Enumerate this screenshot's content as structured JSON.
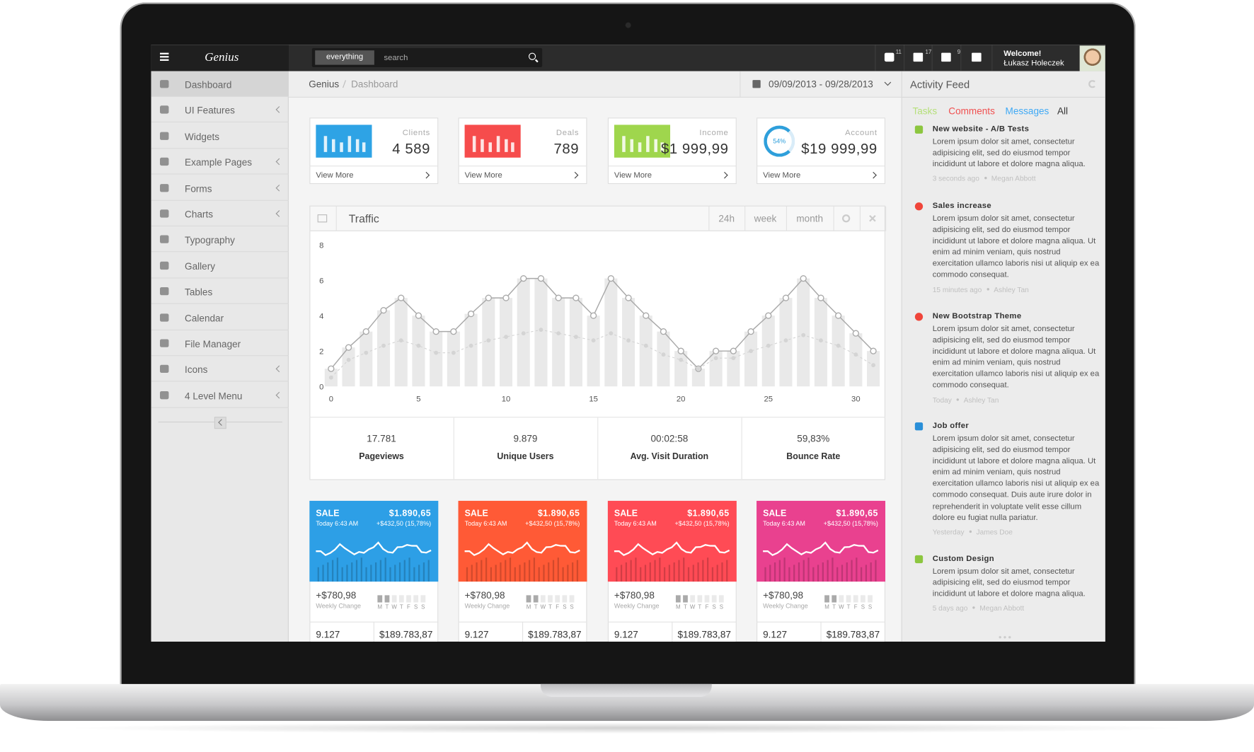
{
  "brand": "Genius",
  "search": {
    "scope": "everything",
    "placeholder": "search"
  },
  "header_badges": [
    "11",
    "17",
    "9"
  ],
  "user": {
    "greeting": "Welcome!",
    "name": "Łukasz Holeczek"
  },
  "sidebar": [
    {
      "label": "Dashboard",
      "submenu": false
    },
    {
      "label": "UI Features",
      "submenu": true
    },
    {
      "label": "Widgets",
      "submenu": false
    },
    {
      "label": "Example Pages",
      "submenu": true
    },
    {
      "label": "Forms",
      "submenu": true
    },
    {
      "label": "Charts",
      "submenu": true
    },
    {
      "label": "Typography",
      "submenu": false
    },
    {
      "label": "Gallery",
      "submenu": false
    },
    {
      "label": "Tables",
      "submenu": false
    },
    {
      "label": "Calendar",
      "submenu": false
    },
    {
      "label": "File Manager",
      "submenu": false
    },
    {
      "label": "Icons",
      "submenu": true
    },
    {
      "label": "4 Level Menu",
      "submenu": true
    }
  ],
  "breadcrumb": [
    "Genius",
    "Dashboard"
  ],
  "date_range": "09/09/2013 - 09/28/2013",
  "stat_boxes": [
    {
      "label": "Clients",
      "value": "4 589",
      "link": "View More",
      "color": "#2ea3e5"
    },
    {
      "label": "Deals",
      "value": "789",
      "link": "View More",
      "color": "#f64c4c"
    },
    {
      "label": "Income",
      "value": "$1 999,99",
      "link": "View More",
      "color": "#9fd64d"
    },
    {
      "label": "Account",
      "value": "$19 999,99",
      "link": "View More",
      "color": "#2e9fdb",
      "badge": "54%"
    }
  ],
  "traffic_tabs": [
    "24h",
    "week",
    "month"
  ],
  "chart_data": {
    "type": "bar",
    "title": "Traffic",
    "x": [
      0,
      1,
      2,
      3,
      4,
      5,
      6,
      7,
      8,
      9,
      10,
      11,
      12,
      13,
      14,
      15,
      16,
      17,
      18,
      19,
      20,
      21,
      22,
      23,
      24,
      25,
      26,
      27,
      28,
      29,
      30,
      31
    ],
    "series": [
      {
        "type": "bar",
        "color": "#e9e9e9",
        "values": [
          1,
          2.2,
          3.1,
          4.3,
          5,
          4,
          3.1,
          3.1,
          4.1,
          5,
          5,
          6.1,
          6.1,
          5,
          5,
          4,
          6.1,
          5,
          4,
          3.1,
          2,
          1,
          2,
          2,
          3.1,
          4,
          5,
          6.1,
          5,
          4,
          3,
          2
        ]
      },
      {
        "type": "line",
        "color": "#a9a9a9",
        "values": [
          1,
          2.2,
          3.1,
          4.3,
          5,
          4,
          3.1,
          3.1,
          4.1,
          5,
          5,
          6.1,
          6.1,
          5,
          5,
          4,
          6.1,
          5,
          4,
          3.1,
          2,
          1,
          2,
          2,
          3.1,
          4,
          5,
          6.1,
          5,
          4,
          3,
          2
        ]
      },
      {
        "type": "line",
        "color": "#d4d4d4",
        "dashed": true,
        "values": [
          0.5,
          1.5,
          1.9,
          2.3,
          2.6,
          2.3,
          1.9,
          1.9,
          2.3,
          2.6,
          2.8,
          3,
          3.2,
          3,
          2.8,
          2.6,
          3,
          2.6,
          2.3,
          1.8,
          1.5,
          1,
          1.6,
          1.6,
          2,
          2.3,
          2.6,
          2.9,
          2.6,
          2.3,
          1.8,
          1.2
        ]
      }
    ],
    "xlim": [
      0,
      31
    ],
    "xticks": [
      0,
      5,
      10,
      15,
      20,
      25,
      30
    ],
    "ylim": [
      0,
      8
    ],
    "yticks": [
      0,
      2,
      4,
      6,
      8
    ]
  },
  "traffic_stats": [
    {
      "value": "17.781",
      "label": "Pageviews"
    },
    {
      "value": "9.879",
      "label": "Unique Users"
    },
    {
      "value": "00:02:58",
      "label": "Avg. Visit Duration"
    },
    {
      "value": "59,83%",
      "label": "Bounce Rate"
    }
  ],
  "sale_days": [
    "M",
    "T",
    "W",
    "T",
    "F",
    "S",
    "S"
  ],
  "sale_cards": [
    {
      "label": "SALE",
      "amount": "$1.890,65",
      "time": "Today 6:43 AM",
      "change": "+$432,50 (15,78%)",
      "weekly": "+$780,98",
      "weekly_label": "Weekly Change",
      "bottom_left": "9.127",
      "bottom_right": "$189.783,87",
      "color": "#2d9fe6"
    },
    {
      "label": "SALE",
      "amount": "$1.890,65",
      "time": "Today 6:43 AM",
      "change": "+$432,50 (15,78%)",
      "weekly": "+$780,98",
      "weekly_label": "Weekly Change",
      "bottom_left": "9.127",
      "bottom_right": "$189.783,87",
      "color": "#ff5a36"
    },
    {
      "label": "SALE",
      "amount": "$1.890,65",
      "time": "Today 6:43 AM",
      "change": "+$432,50 (15,78%)",
      "weekly": "+$780,98",
      "weekly_label": "Weekly Change",
      "bottom_left": "9.127",
      "bottom_right": "$189.783,87",
      "color": "#ff4b55"
    },
    {
      "label": "SALE",
      "amount": "$1.890,65",
      "time": "Today 6:43 AM",
      "change": "+$432,50 (15,78%)",
      "weekly": "+$780,98",
      "weekly_label": "Weekly Change",
      "bottom_left": "9.127",
      "bottom_right": "$189.783,87",
      "color": "#e9418f"
    }
  ],
  "activity": {
    "title": "Activity Feed",
    "tabs": [
      {
        "label": "Tasks",
        "color": "#b5e07a"
      },
      {
        "label": "Comments",
        "color": "#f05050"
      },
      {
        "label": "Messages",
        "color": "#3fa9f5"
      },
      {
        "label": "All",
        "color": "#333333"
      }
    ],
    "items": [
      {
        "title": "New website - A/B Tests",
        "body": "Lorem ipsum dolor sit amet, consectetur adipisicing elit, sed do eiusmod tempor incididunt ut labore et dolore magna aliqua.",
        "time": "3 seconds ago",
        "author": "Megan Abbott",
        "color": "#8cc63f"
      },
      {
        "title": "Sales increase",
        "body": "Lorem ipsum dolor sit amet, consectetur adipisicing elit, sed do eiusmod tempor incididunt ut labore et dolore magna aliqua. Ut enim ad minim veniam, quis nostrud exercitation ullamco laboris nisi ut aliquip ex ea commodo consequat.",
        "time": "15 minutes ago",
        "author": "Ashley Tan",
        "color": "#f0453a"
      },
      {
        "title": "New Bootstrap Theme",
        "body": "Lorem ipsum dolor sit amet, consectetur adipisicing elit, sed do eiusmod tempor incididunt ut labore et dolore magna aliqua. Ut enim ad minim veniam, quis nostrud exercitation ullamco laboris nisi ut aliquip ex ea commodo consequat.",
        "time": "Today",
        "author": "Ashley Tan",
        "color": "#f0453a"
      },
      {
        "title": "Job offer",
        "body": "Lorem ipsum dolor sit amet, consectetur adipisicing elit, sed do eiusmod tempor incididunt ut labore et dolore magna aliqua. Ut enim ad minim veniam, quis nostrud exercitation ullamco laboris nisi ut aliquip ex ea commodo consequat. Duis aute irure dolor in reprehenderit in voluptate velit esse cillum dolore eu fugiat nulla pariatur.",
        "time": "Yesterday",
        "author": "James Doe",
        "color": "#2a8fd8"
      },
      {
        "title": "Custom Design",
        "body": "Lorem ipsum dolor sit amet, consectetur adipisicing elit, sed do eiusmod tempor incididunt ut labore et dolore magna aliqua.",
        "time": "5 days ago",
        "author": "Megan Abbott",
        "color": "#8cc63f"
      }
    ]
  }
}
